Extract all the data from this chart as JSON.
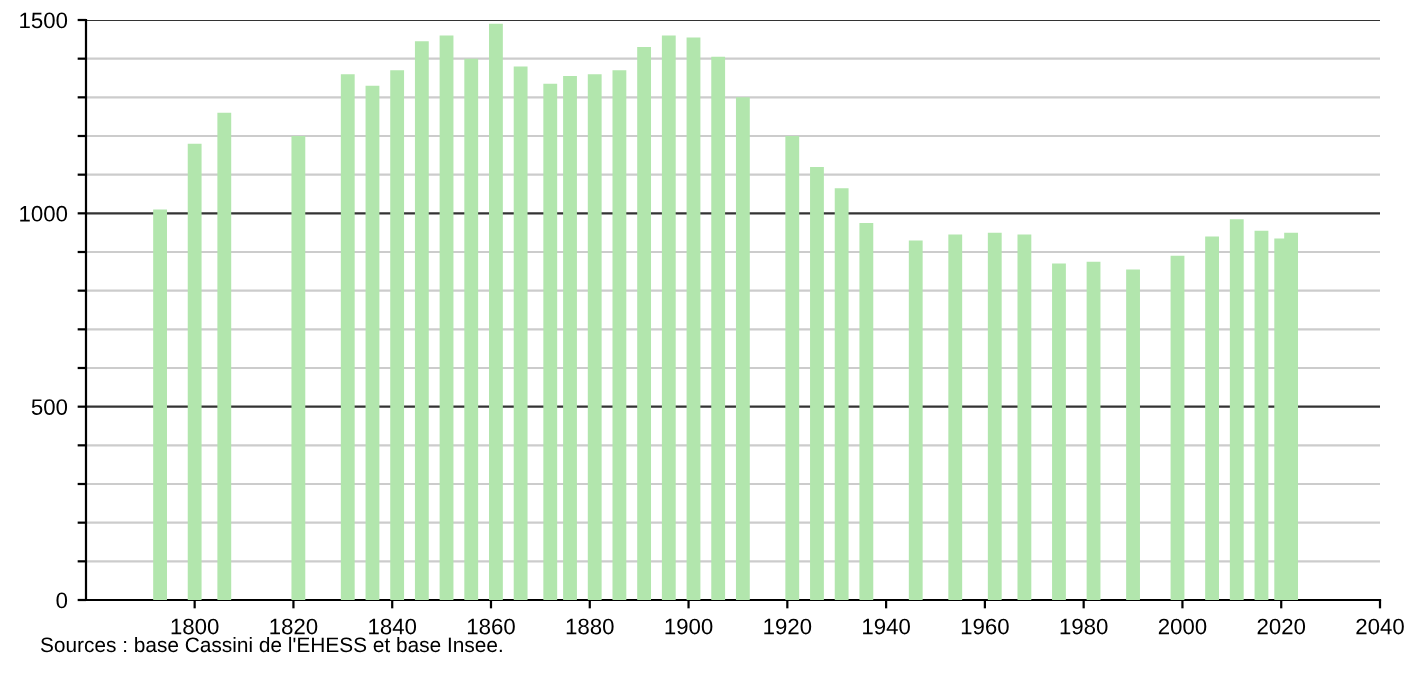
{
  "chart_data": {
    "type": "bar",
    "x": [
      1793,
      1800,
      1806,
      1821,
      1831,
      1836,
      1841,
      1846,
      1851,
      1856,
      1861,
      1866,
      1872,
      1876,
      1881,
      1886,
      1891,
      1896,
      1901,
      1906,
      1911,
      1921,
      1926,
      1931,
      1936,
      1946,
      1954,
      1962,
      1968,
      1975,
      1982,
      1990,
      1999,
      2006,
      2011,
      2016,
      2020,
      2022
    ],
    "values": [
      1010,
      1180,
      1260,
      1200,
      1360,
      1330,
      1370,
      1445,
      1460,
      1400,
      1490,
      1380,
      1335,
      1355,
      1360,
      1370,
      1430,
      1460,
      1455,
      1405,
      1300,
      1200,
      1120,
      1065,
      975,
      930,
      945,
      950,
      945,
      870,
      875,
      855,
      890,
      940,
      985,
      955,
      935,
      950
    ],
    "color": "#b2e6ad",
    "xlim": [
      1778,
      2040
    ],
    "xticks": [
      1800,
      1820,
      1840,
      1860,
      1880,
      1900,
      1920,
      1940,
      1960,
      1980,
      2000,
      2020,
      2040
    ],
    "ylim": [
      0,
      1500
    ],
    "yticks": [
      0,
      {
        "value": 100,
        "label": null
      },
      {
        "value": 200,
        "label": null
      },
      {
        "value": 300,
        "label": null
      },
      {
        "value": 400,
        "label": null
      },
      500,
      {
        "value": 600,
        "label": null
      },
      {
        "value": 700,
        "label": null
      },
      {
        "value": 800,
        "label": null
      },
      {
        "value": 900,
        "label": null
      },
      1000,
      {
        "value": 1100,
        "label": null
      },
      {
        "value": 1200,
        "label": null
      },
      {
        "value": 1300,
        "label": null
      },
      {
        "value": 1400,
        "label": null
      },
      1500
    ],
    "grid": "y",
    "annotations": [
      "Sources : base Cassini de l'EHESS et base Insee."
    ]
  }
}
